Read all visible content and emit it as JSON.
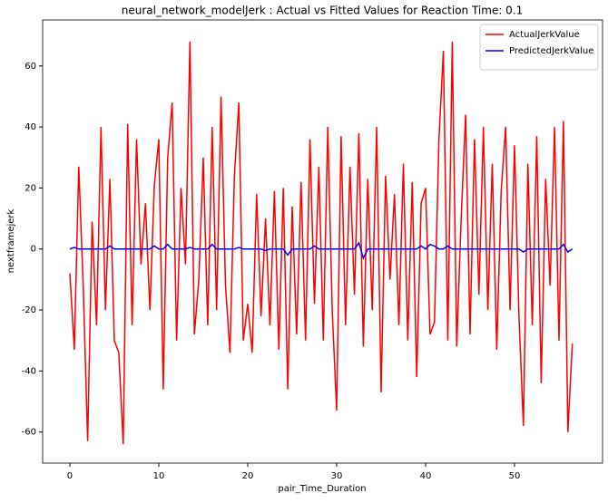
{
  "chart_data": {
    "type": "line",
    "title": "neural_network_modelJerk : Actual vs Fitted Values for Reaction Time: 0.1",
    "x_label": "pair_Time_Duration",
    "y_label": "nextframejerk",
    "x": [
      0,
      0.5,
      1,
      1.5,
      2,
      2.5,
      3,
      3.5,
      4,
      4.5,
      5,
      5.5,
      6,
      6.5,
      7,
      7.5,
      8,
      8.5,
      9,
      9.5,
      10,
      10.5,
      11,
      11.5,
      12,
      12.5,
      13,
      13.5,
      14,
      14.5,
      15,
      15.5,
      16,
      16.5,
      17,
      17.5,
      18,
      18.5,
      19,
      19.5,
      20,
      20.5,
      21,
      21.5,
      22,
      22.5,
      23,
      23.5,
      24,
      24.5,
      25,
      25.5,
      26,
      26.5,
      27,
      27.5,
      28,
      28.5,
      29,
      29.5,
      30,
      30.5,
      31,
      31.5,
      32,
      32.5,
      33,
      33.5,
      34,
      34.5,
      35,
      35.5,
      36,
      36.5,
      37,
      37.5,
      38,
      38.5,
      39,
      39.5,
      40,
      40.5,
      41,
      41.5,
      42,
      42.5,
      43,
      43.5,
      44,
      44.5,
      45,
      45.5,
      46,
      46.5,
      47,
      47.5,
      48,
      48.5,
      49,
      49.5,
      50,
      50.5,
      51,
      51.5,
      52,
      52.5,
      53,
      53.5,
      54,
      54.5,
      55,
      55.5,
      56,
      56.5
    ],
    "series": [
      {
        "name": "ActualJerkValue",
        "color": "#ff0000",
        "values": [
          -8,
          -33,
          27,
          -12,
          -63,
          9,
          -25,
          40,
          -20,
          23,
          -30,
          -34,
          -64,
          41,
          -25,
          36,
          -5,
          15,
          -20,
          21,
          36,
          -46,
          30,
          48,
          -30,
          20,
          -5,
          68,
          -28,
          -10,
          30,
          -25,
          40,
          -20,
          50,
          -12,
          -34,
          24,
          48,
          -30,
          -18,
          -34,
          18,
          -22,
          10,
          -25,
          19,
          -33,
          20,
          -46,
          14,
          -28,
          22,
          -30,
          36,
          -18,
          27,
          -30,
          40,
          -20,
          -53,
          37,
          -25,
          27,
          -15,
          38,
          -32,
          23,
          -20,
          40,
          -47,
          24,
          -10,
          18,
          -25,
          28,
          -30,
          22,
          -42,
          15,
          20,
          -28,
          -24,
          36,
          65,
          -30,
          68,
          -32,
          10,
          44,
          -28,
          36,
          -15,
          40,
          -20,
          28,
          -33,
          19,
          40,
          -20,
          34,
          -22,
          -58,
          28,
          -25,
          37,
          -44,
          23,
          -12,
          40,
          -30,
          42,
          -60,
          -31
        ]
      },
      {
        "name": "PredictedJerkValue",
        "color": "#0000ff",
        "values": [
          0,
          0.5,
          0,
          0,
          0,
          0,
          0,
          0,
          0,
          1,
          0,
          0,
          0,
          0,
          0,
          0,
          0,
          0,
          0,
          1,
          0,
          0,
          1.5,
          0,
          0,
          0,
          0,
          0.5,
          0,
          0,
          0,
          0,
          1.5,
          0,
          0,
          0,
          0,
          0,
          0.5,
          0,
          0,
          0,
          0,
          0,
          -0.5,
          0,
          0,
          0,
          0,
          -2,
          0,
          0,
          0,
          0,
          0,
          1,
          0,
          0,
          0,
          0,
          0,
          0,
          0,
          0,
          0,
          2,
          -3,
          0,
          0,
          0,
          0,
          0,
          0,
          0,
          0,
          0,
          0,
          0,
          0,
          1,
          0,
          1.5,
          1,
          0,
          0,
          1,
          0,
          0,
          0,
          0,
          0,
          0,
          0,
          0,
          0,
          0,
          0,
          0,
          0,
          0,
          0,
          0,
          -1,
          0,
          0,
          0,
          0,
          0,
          0,
          0,
          0,
          1.5,
          -1,
          0
        ]
      }
    ],
    "xlim": [
      -3.06,
      59.9
    ],
    "ylim": [
      -70.2,
      75.1
    ],
    "xticks": [
      0,
      10,
      20,
      30,
      40,
      50
    ],
    "yticks": [
      -60,
      -40,
      -20,
      0,
      20,
      40,
      60
    ],
    "legend": "upper right"
  }
}
